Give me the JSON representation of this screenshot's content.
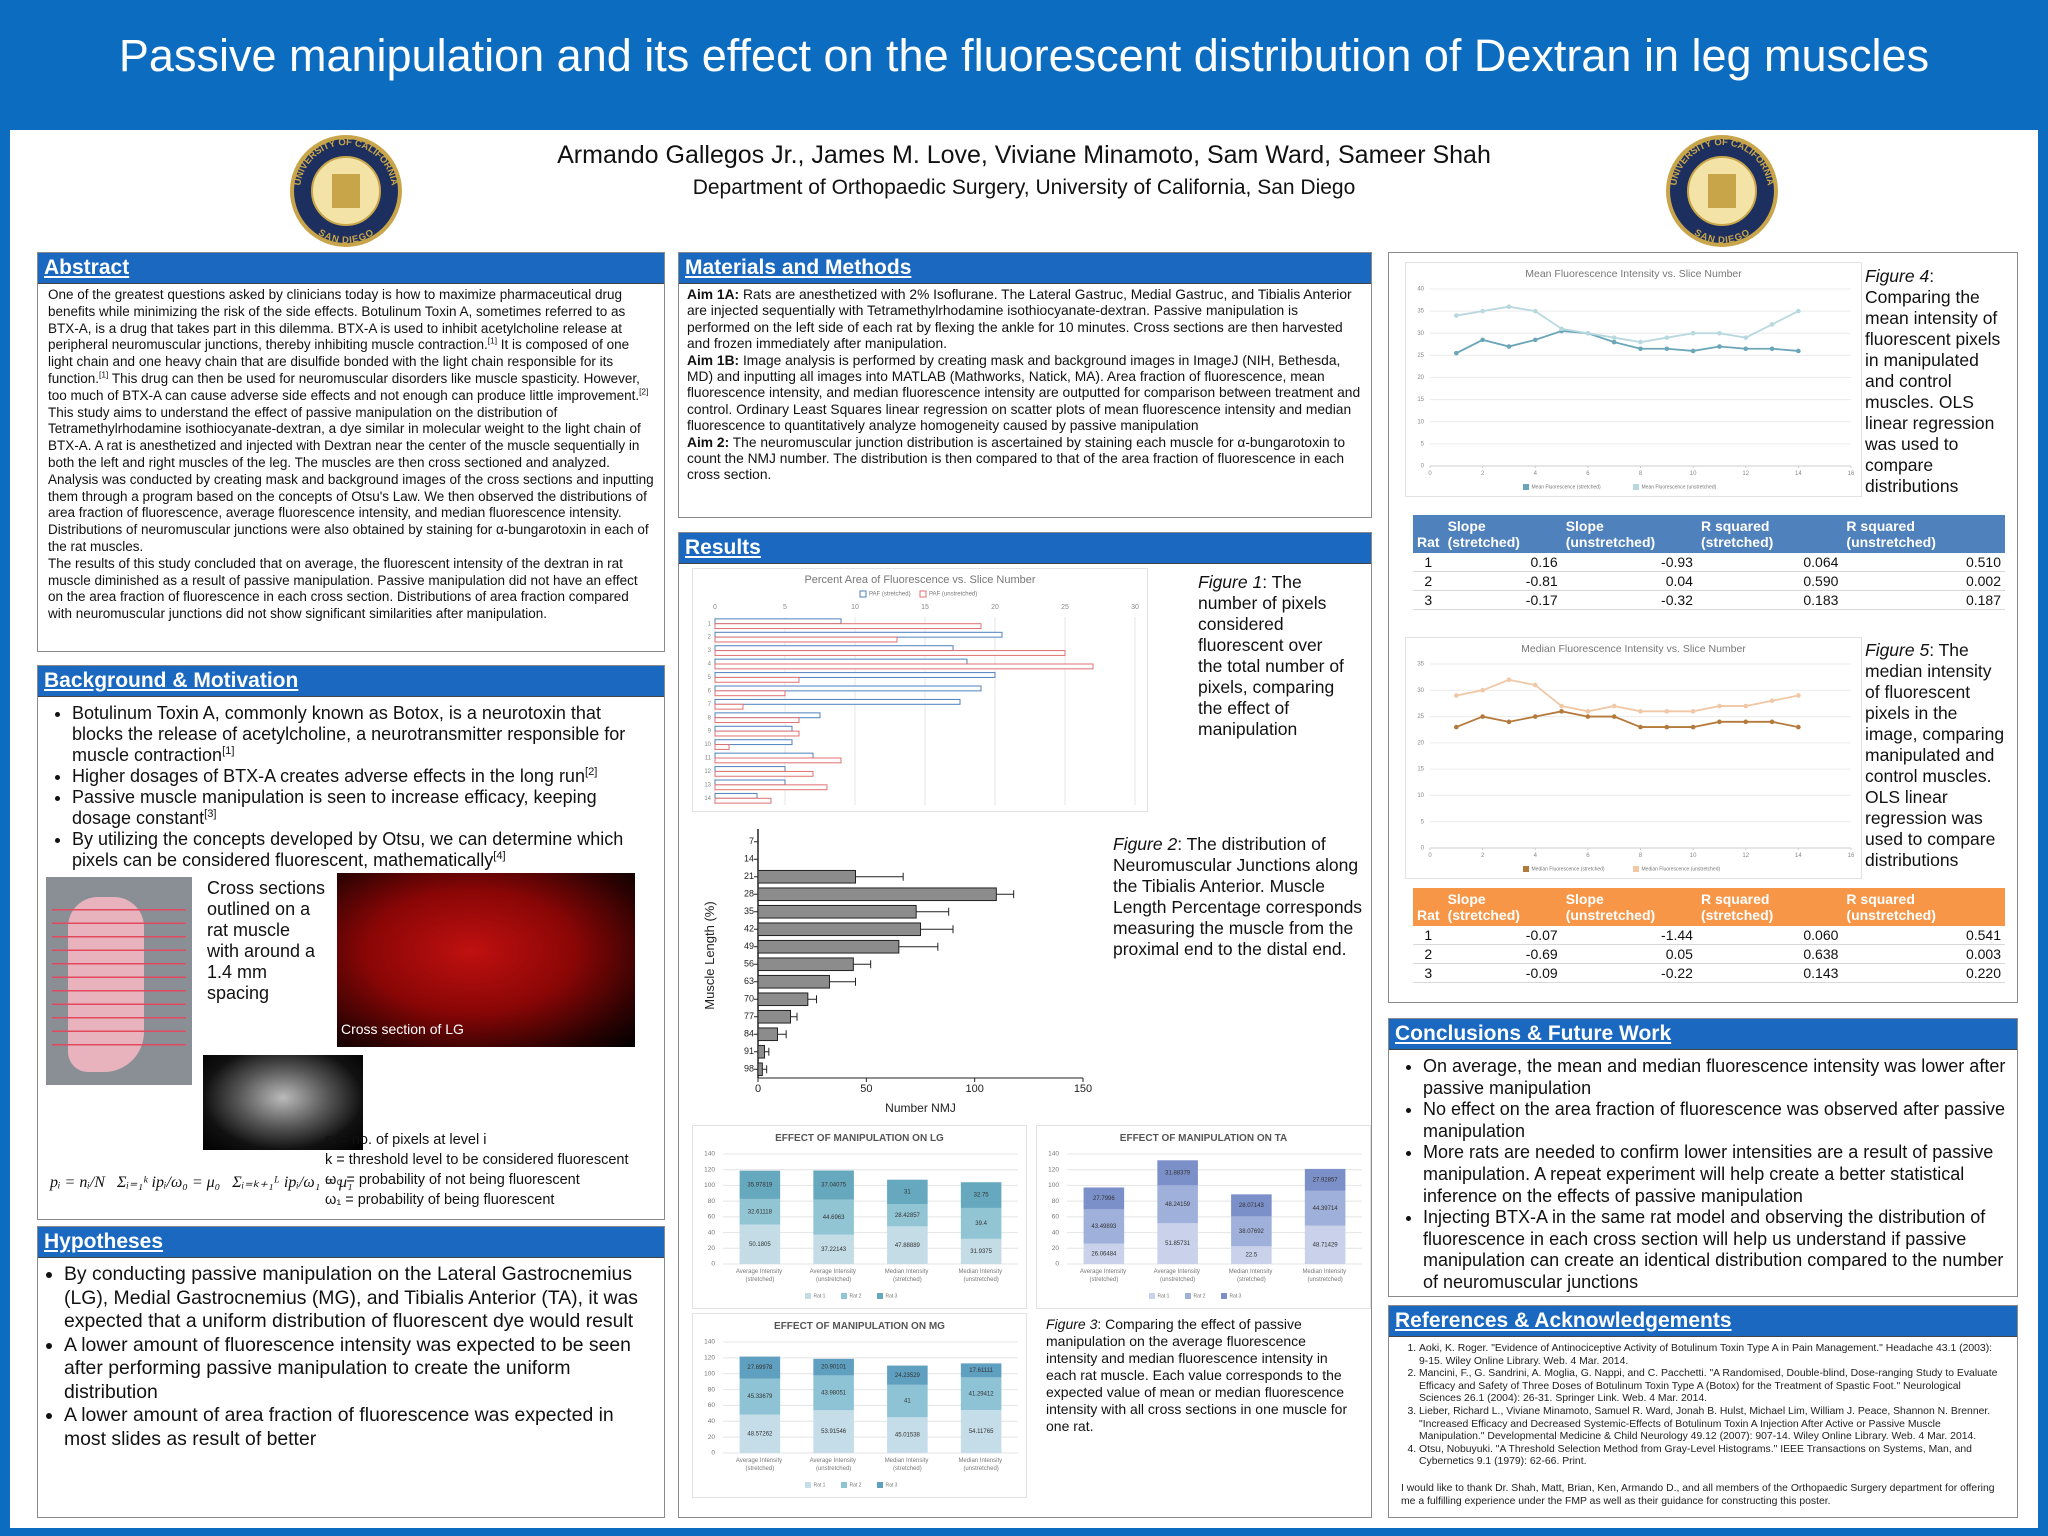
{
  "header": {
    "title": "Passive manipulation and its effect on the fluorescent distribution of Dextran in leg muscles",
    "authors": "Armando Gallegos Jr., James M. Love, Viviane Minamoto, Sam Ward, Sameer Shah",
    "department": "Department of Orthopaedic Surgery, University of California, San Diego",
    "logo_text": [
      "UNIVERSITY OF CALIFORNIA",
      "SAN DIEGO"
    ]
  },
  "abstract": {
    "heading": "Abstract",
    "paragraphs": [
      "One of the greatest questions asked by clinicians today is how to maximize pharmaceutical drug benefits while minimizing the risk of the side effects. Botulinum Toxin A, sometimes referred to as BTX-A, is a drug that takes part in this dilemma. BTX-A is used to inhibit acetylcholine release at peripheral neuromuscular junctions, thereby inhibiting muscle contraction.[1] It is composed of one light chain and one heavy chain that are disulfide bonded with the light chain responsible for its function.[1] This drug can then be used for neuromuscular disorders like muscle spasticity. However, too much of BTX-A can cause adverse side effects and not enough can produce little improvement.[2]",
      "This study aims to understand the effect of passive manipulation on the distribution of Tetramethylrhodamine isothiocyanate-dextran, a dye similar in molecular weight to the light chain of BTX-A. A rat is anesthetized and injected with Dextran near the center of the muscle sequentially in both the left and right muscles of the leg. The muscles are then cross sectioned and analyzed. Analysis was conducted by creating mask and background images of the cross sections and inputting them through a program based on the concepts of Otsu's Law. We then observed the distributions of area fraction of fluorescence, average fluorescence intensity, and median fluorescence intensity. Distributions of neuromuscular junctions were also obtained by staining for α-bungarotoxin in each of the rat muscles.",
      "The results of this study concluded that on average, the fluorescent intensity of the dextran in rat muscle diminished as a result of passive manipulation. Passive manipulation did not have an effect on the area fraction of fluorescence in each cross section. Distributions of area fraction compared with neuromuscular junctions did not show significant similarities after manipulation."
    ]
  },
  "background": {
    "heading": "Background & Motivation",
    "bullets": [
      "Botulinum Toxin A, commonly known as Botox, is a neurotoxin that blocks the release of acetylcholine, a neurotransmitter responsible for muscle contraction[1]",
      "Higher dosages of BTX-A creates adverse effects in the long run[2]",
      "Passive muscle manipulation is seen to increase efficacy, keeping dosage constant[3]",
      "By utilizing the concepts developed by Otsu, we can determine which pixels can be considered fluorescent, mathematically[4]"
    ],
    "image_caption": "Cross sections outlined on a rat muscle with around a 1.4 mm spacing",
    "section_label": "Cross section of LG",
    "equations": [
      "pᵢ = nᵢ/N",
      "Σᵢ₌₁ᵏ ipᵢ/ω₀ = μ₀",
      "Σᵢ₌ₖ₊₁ᴸ ipᵢ/ω₁ = μ₁"
    ],
    "definitions": [
      "nᵢ = no. of pixels at level i",
      "k = threshold level to be considered fluorescent",
      "ω₀ = probability of not being fluorescent",
      "ω₁ = probability of being fluorescent"
    ]
  },
  "hypotheses": {
    "heading": "Hypotheses",
    "bullets": [
      "By conducting passive manipulation on the Lateral Gastrocnemius (LG), Medial Gastrocnemius (MG), and Tibialis Anterior (TA), it was expected that a uniform distribution of fluorescent dye would result",
      "A lower amount of fluorescence intensity was expected to be seen after performing passive manipulation to create the uniform distribution",
      "A lower amount of area fraction of fluorescence was expected in most slides as result of better"
    ]
  },
  "methods": {
    "heading": "Materials and Methods",
    "items": [
      {
        "label": "Aim 1A:",
        "text": " Rats are anesthetized with 2% Isoflurane. The Lateral Gastruc, Medial Gastruc, and Tibialis Anterior are injected sequentially with Tetramethylrhodamine isothiocyanate-dextran. Passive manipulation is performed on the left side of each rat by flexing the ankle for 10 minutes. Cross sections are then harvested and frozen immediately after manipulation."
      },
      {
        "label": "Aim 1B:",
        "text": " Image analysis is performed by creating mask and background images in ImageJ (NIH, Bethesda, MD) and inputting all images into MATLAB (Mathworks, Natick, MA). Area fraction of fluorescence, mean fluorescence intensity, and median fluorescence intensity are outputted for comparison between treatment and control. Ordinary Least Squares linear regression on scatter plots of mean fluorescence intensity and median fluorescence to quantitatively analyze homogeneity caused by passive manipulation"
      },
      {
        "label": "Aim 2:",
        "text": " The neuromuscular junction distribution is ascertained by staining each muscle for α-bungarotoxin to count the NMJ number. The distribution is then compared to that of the area fraction of fluorescence in each cross section."
      }
    ]
  },
  "results": {
    "heading": "Results",
    "captions": [
      {
        "label": "Figure 1",
        "text": ": The number of pixels considered fluorescent over the total number of pixels, comparing the effect of manipulation"
      },
      {
        "label": "Figure 2",
        "text": ": The distribution of Neuromuscular Junctions along the Tibialis Anterior. Muscle Length Percentage corresponds measuring the muscle from the proximal end to the distal end."
      },
      {
        "label": "Figure 3",
        "text": ": Comparing the effect of passive manipulation on the average fluorescence intensity and median fluorescence intensity in each rat muscle. Each value corresponds to the expected value of mean or median fluorescence intensity with all cross sections in one muscle for one rat."
      }
    ]
  },
  "right_panel": {
    "captions": [
      {
        "label": "Figure 4",
        "text": ": Comparing the mean intensity of fluorescent pixels in manipulated and control muscles. OLS linear regression was used to compare distributions"
      },
      {
        "label": "Figure 5",
        "text": ": The median intensity of fluorescent pixels in the image, comparing manipulated and control muscles. OLS linear regression was used to compare distributions"
      }
    ],
    "tables": [
      {
        "color": "#4f81bd",
        "header": [
          "Rat",
          "Slope (stretched)",
          "Slope (unstretched)",
          "R squared (stretched)",
          "R squared (unstretched)"
        ],
        "rows": [
          [
            "1",
            "0.16",
            "-0.93",
            "0.064",
            "0.510"
          ],
          [
            "2",
            "-0.81",
            "0.04",
            "0.590",
            "0.002"
          ],
          [
            "3",
            "-0.17",
            "-0.32",
            "0.183",
            "0.187"
          ]
        ]
      },
      {
        "color": "#f79646",
        "header": [
          "Rat",
          "Slope (stretched)",
          "Slope (unstretched)",
          "R squared (stretched)",
          "R squared (unstretched)"
        ],
        "rows": [
          [
            "1",
            "-0.07",
            "-1.44",
            "0.060",
            "0.541"
          ],
          [
            "2",
            "-0.69",
            "0.05",
            "0.638",
            "0.003"
          ],
          [
            "3",
            "-0.09",
            "-0.22",
            "0.143",
            "0.220"
          ]
        ]
      }
    ]
  },
  "conclusions": {
    "heading": "Conclusions & Future Work",
    "bullets": [
      "On average, the mean and median fluorescence intensity was lower after passive manipulation",
      "No effect on the area fraction of fluorescence was observed after passive manipulation",
      "More rats are needed to confirm lower intensities are a result of passive manipulation. A repeat experiment will help create a better statistical inference on the effects of passive manipulation",
      "Injecting BTX-A in the same rat model and observing the distribution of fluorescence in each cross section will help us understand if passive manipulation can create an identical distribution compared to the number of neuromuscular junctions"
    ]
  },
  "references": {
    "heading": "References & Acknowledgements",
    "items": [
      "Aoki, K. Roger. \"Evidence of Antinociceptive Activity of Botulinum Toxin Type A in Pain Management.\" Headache 43.1 (2003): 9-15. Wiley Online Library. Web. 4 Mar. 2014.",
      "Mancini, F., G. Sandrini, A. Moglia, G. Nappi, and C. Pacchetti. \"A Randomised, Double-blind, Dose-ranging Study to Evaluate Efficacy and Safety of Three Doses of Botulinum Toxin Type A (Botox) for the Treatment of Spastic Foot.\" Neurological Sciences 26.1 (2004): 26-31. Springer Link. Web. 4 Mar. 2014.",
      "Lieber, Richard L., Viviane Minamoto, Samuel R. Ward, Jonah B. Hulst, Michael Lim, William J. Peace, Shannon N. Brenner. \"Increased Efficacy and Decreased Systemic-Effects of Botulinum Toxin A Injection After Active or Passive Muscle Manipulation.\" Developmental Medicine & Child Neurology 49.12 (2007): 907-14. Wiley Online Library. Web. 4 Mar. 2014.",
      "Otsu, Nobuyuki. \"A Threshold Selection Method from Gray-Level Histograms.\" IEEE Transactions on Systems, Man, and Cybernetics 9.1 (1979): 62-66. Print."
    ],
    "acknowledgement": "I would like to thank Dr. Shah, Matt, Brian, Ken, Armando D., and all members of the Orthopaedic Surgery department for offering me a fulfilling experience under the FMP as well as their guidance for constructing this poster."
  },
  "chart_data": [
    {
      "type": "bar",
      "orientation": "horizontal",
      "bar_style": "outline",
      "xaxis_position": "top",
      "grid": true,
      "title": "Percent Area of Fluorescence vs. Slice Number",
      "categories": [
        "1",
        "2",
        "3",
        "4",
        "5",
        "6",
        "7",
        "8",
        "9",
        "10",
        "11",
        "12",
        "13",
        "14"
      ],
      "series": [
        {
          "name": "PAF (stretched)",
          "color": "#4f81bd",
          "values": [
            9,
            20.5,
            17,
            18,
            20,
            19,
            17.5,
            7.5,
            5.5,
            5.5,
            7,
            5,
            5,
            3
          ]
        },
        {
          "name": "PAF (unstretched)",
          "color": "#e07070",
          "values": [
            19,
            13,
            25,
            27,
            6,
            5,
            2,
            6,
            6,
            1,
            9,
            7,
            8,
            4
          ]
        }
      ],
      "xlim": [
        0,
        30
      ],
      "xticks": [
        0,
        5,
        10,
        15,
        20,
        25,
        30
      ]
    },
    {
      "type": "bar",
      "orientation": "horizontal",
      "xaxis_position": "bottom",
      "grid": false,
      "color": "#8c8c8c",
      "categories": [
        "7",
        "14",
        "21",
        "28",
        "35",
        "42",
        "49",
        "56",
        "63",
        "70",
        "77",
        "84",
        "91",
        "98"
      ],
      "values": [
        0,
        0,
        45,
        110,
        73,
        75,
        65,
        44,
        33,
        23,
        15,
        9,
        3,
        2
      ],
      "errors": [
        0,
        0,
        22,
        8,
        15,
        15,
        18,
        8,
        12,
        4,
        3,
        4,
        2,
        2
      ],
      "xlim": [
        0,
        150
      ],
      "xticks": [
        0,
        50,
        100,
        150
      ],
      "x_label": "Number NMJ",
      "y_label": "Muscle Length (%)"
    },
    {
      "type": "stacked_bar",
      "grid": true,
      "title": "EFFECT OF MANIPULATION ON LG",
      "categories": [
        "Average Intensity (stretched)",
        "Average Intensity (unstretched)",
        "Median Intensity (stretched)",
        "Median Intensity (unstretched)"
      ],
      "series": [
        {
          "name": "Rat 1",
          "color": "#c3dce6",
          "values": [
            50.1805,
            37.22143,
            47.88889,
            31.9375
          ]
        },
        {
          "name": "Rat 2",
          "color": "#92c5d4",
          "values": [
            32.61118,
            44.6963,
            28.42857,
            39.4
          ]
        },
        {
          "name": "Rat 3",
          "color": "#66a9bf",
          "values": [
            35.97819,
            37.04075,
            31,
            32.75
          ]
        }
      ],
      "ylim": [
        0,
        140
      ],
      "yticks": [
        0,
        20,
        40,
        60,
        80,
        100,
        120,
        140
      ]
    },
    {
      "type": "stacked_bar",
      "grid": true,
      "title": "EFFECT OF MANIPULATION ON TA",
      "categories": [
        "Average Intensity (stretched)",
        "Average Intensity (unstretched)",
        "Median Intensity (stretched)",
        "Median Intensity (unstretched)"
      ],
      "series": [
        {
          "name": "Rat 1",
          "color": "#c9d2ea",
          "values": [
            26.06484,
            51.85731,
            22.5,
            48.71429
          ]
        },
        {
          "name": "Rat 2",
          "color": "#9fb0da",
          "values": [
            43.49893,
            48.24159,
            38.07692,
            44.39714
          ]
        },
        {
          "name": "Rat 3",
          "color": "#7b8fc9",
          "values": [
            27.7996,
            31.88379,
            28.07143,
            27.92857
          ]
        }
      ],
      "ylim": [
        0,
        140
      ],
      "yticks": [
        0,
        20,
        40,
        60,
        80,
        100,
        120,
        140
      ]
    },
    {
      "type": "stacked_bar",
      "grid": true,
      "title": "EFFECT OF MANIPULATION ON MG",
      "categories": [
        "Average Intensity (stretched)",
        "Average Intensity (unstretched)",
        "Median Intensity (stretched)",
        "Median Intensity (unstretched)"
      ],
      "series": [
        {
          "name": "Rat 1",
          "color": "#c5dde9",
          "values": [
            48.57262,
            53.91546,
            45.01538,
            54.11765
          ]
        },
        {
          "name": "Rat 2",
          "color": "#8ec3d6",
          "values": [
            45.33679,
            43.98051,
            41,
            41.29412
          ]
        },
        {
          "name": "Rat 3",
          "color": "#5f9fbf",
          "values": [
            27.69978,
            20.90101,
            24.23529,
            17.61111
          ]
        }
      ],
      "ylim": [
        0,
        140
      ],
      "yticks": [
        0,
        20,
        40,
        60,
        80,
        100,
        120,
        140
      ]
    },
    {
      "type": "line",
      "grid": true,
      "title": "Mean Fluorescence Intensity vs. Slice Number",
      "x": [
        1,
        2,
        3,
        4,
        5,
        6,
        7,
        8,
        9,
        10,
        11,
        12,
        13,
        14
      ],
      "series": [
        {
          "name": "Mean Fluorescence (stretched)",
          "color": "#6aa6b8",
          "values": [
            25.5,
            28.5,
            27,
            28.5,
            30.5,
            30,
            28,
            26.5,
            26.5,
            26,
            27,
            26.5,
            26.5,
            26
          ]
        },
        {
          "name": "Mean Fluorescence (unstretched)",
          "color": "#b8d8df",
          "values": [
            34,
            35,
            36,
            35,
            31,
            30,
            29,
            28,
            29,
            30,
            30,
            29,
            32,
            35
          ]
        }
      ],
      "xlim": [
        0,
        16
      ],
      "xticks": [
        0,
        2,
        4,
        6,
        8,
        10,
        12,
        14,
        16
      ],
      "ylim": [
        0,
        40
      ],
      "yticks": [
        0,
        5,
        10,
        15,
        20,
        25,
        30,
        35,
        40
      ]
    },
    {
      "type": "line",
      "grid": true,
      "title": "Median Fluorescence Intensity vs. Slice Number",
      "x": [
        1,
        2,
        3,
        4,
        5,
        6,
        7,
        8,
        9,
        10,
        11,
        12,
        13,
        14
      ],
      "series": [
        {
          "name": "Median Fluorescence (stretched)",
          "color": "#b47a3c",
          "values": [
            23,
            25,
            24,
            25,
            26,
            25,
            25,
            23,
            23,
            23,
            24,
            24,
            24,
            23
          ]
        },
        {
          "name": "Median Fluorescence (unstretched)",
          "color": "#f0c8a6",
          "values": [
            29,
            30,
            32,
            31,
            27,
            26,
            27,
            26,
            26,
            26,
            27,
            27,
            28,
            29
          ]
        }
      ],
      "xlim": [
        0,
        16
      ],
      "xticks": [
        0,
        2,
        4,
        6,
        8,
        10,
        12,
        14,
        16
      ],
      "ylim": [
        0,
        35
      ],
      "yticks": [
        0,
        5,
        10,
        15,
        20,
        25,
        30,
        35
      ]
    }
  ]
}
